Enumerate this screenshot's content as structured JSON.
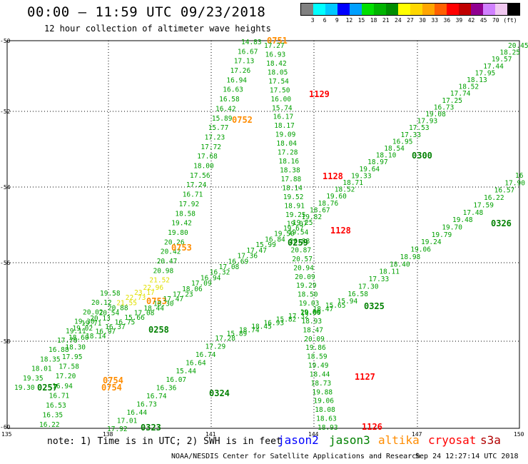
{
  "header": {
    "title": "00:00 – 11:59 UTC 09/23/2018",
    "subtitle": "12 hour collection of altimeter wave heights"
  },
  "legend": {
    "colors": [
      "#808080",
      "#00ffff",
      "#00c8ff",
      "#0000ff",
      "#00a0ff",
      "#00e000",
      "#00b400",
      "#008c00",
      "#ffff00",
      "#ffd700",
      "#ffa500",
      "#ff6000",
      "#ff0000",
      "#c00000",
      "#900090",
      "#d080ff",
      "#f0c8f0",
      "#000000"
    ],
    "labels": [
      "3",
      "6",
      "9",
      "12",
      "15",
      "18",
      "21",
      "24",
      "27",
      "30",
      "33",
      "36",
      "39",
      "42",
      "45",
      "70",
      "(ft)"
    ]
  },
  "map": {
    "lat_labels": [
      "-50",
      "-52",
      "-54",
      "-56",
      "-58",
      "-60"
    ],
    "lon_labels": [
      "135",
      "138",
      "141",
      "144",
      "147",
      "150"
    ],
    "passes": [
      {
        "id": "p0751",
        "sat": "altika",
        "time": "0751",
        "color": "#ff8c00",
        "time_pos": [
          374,
          56
        ],
        "values": [
          "14.83",
          "16.67",
          "17.13",
          "17.26",
          "16.94",
          "16.63",
          "16.58",
          "16.42",
          "15.89",
          "15.77",
          "17.23",
          "17.72",
          "17.68",
          "18.00",
          "17.56",
          "17.24",
          "16.71",
          "17.92",
          "18.58",
          "19.42",
          "19.80",
          "20.26",
          "20.42",
          "20.47",
          "20.98",
          "21.52",
          "22.96",
          "23.17",
          "22.73",
          "21.55",
          "20.88",
          "20.54",
          "20.13",
          "19.71",
          "19.02",
          "18.60",
          "18.30",
          "17.95",
          "17.58",
          "17.20",
          "16.94",
          "16.71",
          "16.53",
          "16.35",
          "16.22"
        ]
      },
      {
        "id": "p0752",
        "sat": "altika",
        "time": "0752",
        "color": "#ff8c00",
        "time_pos": [
          325,
          167
        ],
        "values": []
      },
      {
        "id": "p0753",
        "sat": "altika",
        "time": "0753",
        "color": "#ff8c00",
        "time_pos": [
          240,
          346
        ],
        "values": []
      },
      {
        "id": "p0753b",
        "sat": "altika",
        "time": "0753",
        "color": "#ff8c00",
        "time_pos": [
          205,
          421
        ],
        "values": []
      },
      {
        "id": "p0754",
        "sat": "altika",
        "time": "0754",
        "color": "#ff8c00",
        "time_pos": [
          144,
          532
        ],
        "values": []
      },
      {
        "id": "p0754b",
        "sat": "altika",
        "time": "0754",
        "color": "#ff8c00",
        "time_pos": [
          142,
          542
        ],
        "values": []
      },
      {
        "id": "p1129",
        "sat": "cryosat",
        "time": "1129",
        "color": "#ff0000",
        "time_pos": [
          433,
          131
        ],
        "values": [
          "17.27",
          "16.93",
          "18.42",
          "18.05",
          "17.54",
          "17.50",
          "16.00",
          "15.74",
          "16.17",
          "18.17",
          "19.09",
          "18.04",
          "17.28",
          "18.16",
          "18.38",
          "17.88",
          "18.14",
          "19.52",
          "18.91",
          "19.25",
          "19.07",
          "19.54",
          "20.88",
          "20.87",
          "20.57",
          "20.94",
          "20.09",
          "19.29",
          "18.50",
          "19.03",
          "19.60",
          "18.93",
          "18.47",
          "20.09",
          "19.86",
          "18.59",
          "19.49",
          "18.44",
          "18.73",
          "19.88",
          "19.06",
          "18.08",
          "18.63",
          "18.93"
        ]
      },
      {
        "id": "p1128",
        "sat": "cryosat",
        "time": "1128",
        "color": "#ff0000",
        "time_pos": [
          452,
          246
        ],
        "values": []
      },
      {
        "id": "p1128b",
        "sat": "cryosat",
        "time": "1128",
        "color": "#ff0000",
        "time_pos": [
          463,
          322
        ],
        "values": []
      },
      {
        "id": "p1127",
        "sat": "cryosat",
        "time": "1127",
        "color": "#ff0000",
        "time_pos": [
          497,
          527
        ],
        "values": []
      },
      {
        "id": "p1126",
        "sat": "cryosat",
        "time": "1126",
        "color": "#ff0000",
        "time_pos": [
          507,
          597
        ],
        "values": []
      },
      {
        "id": "p0300",
        "sat": "jason3",
        "time": "0300",
        "color": "#008000",
        "time_pos": [
          577,
          217
        ],
        "values": [
          "20.45",
          "18.25",
          "19.57",
          "17.44",
          "17.95",
          "18.13",
          "18.52",
          "17.74",
          "17.25",
          "16.73",
          "19.08",
          "17.93",
          "17.53",
          "17.33",
          "16.95",
          "18.54",
          "18.10",
          "18.97",
          "19.64",
          "19.33",
          "18.71",
          "18.52",
          "19.60",
          "18.76",
          "18.67",
          "19.82",
          "19.25",
          "19.67",
          "19.50",
          "16.84",
          "15.99",
          "17.47",
          "17.36",
          "16.69",
          "17.08",
          "16.32",
          "16.94",
          "17.09",
          "18.06",
          "17.23",
          "17.47",
          "18.30",
          "18.44",
          "17.08",
          "15.66",
          "16.75",
          "16.37",
          "16.97",
          "18.14"
        ]
      },
      {
        "id": "p0259",
        "sat": "jason3",
        "time": "0259",
        "color": "#008000",
        "time_pos": [
          403,
          339
        ],
        "values": []
      },
      {
        "id": "p0258",
        "sat": "jason3",
        "time": "0258",
        "color": "#008000",
        "time_pos": [
          208,
          461
        ],
        "values": []
      },
      {
        "id": "p0257",
        "sat": "jason3",
        "time": "0257",
        "color": "#008000",
        "time_pos": [
          52,
          542
        ],
        "values": [
          "19.30",
          "19.35",
          "18.01",
          "18.35",
          "16.88",
          "17.70",
          "19.11",
          "19.30",
          "20.02",
          "20.12",
          "19.58"
        ]
      },
      {
        "id": "p0326",
        "sat": "jason3",
        "time": "0326",
        "color": "#008000",
        "time_pos": [
          688,
          312
        ],
        "values": [
          "16",
          "17.90",
          "16.57",
          "16.22",
          "17.59",
          "17.48",
          "19.48",
          "19.70",
          "19.79",
          "19.24",
          "19.06",
          "18.98",
          "18.40",
          "18.11",
          "17.33",
          "17.30",
          "16.58",
          "15.94",
          "15.65",
          "18.47",
          "20.09",
          "17.32",
          "15.82",
          "16.93",
          "18.45",
          "18.74",
          "15.89",
          "17.28",
          "17.29",
          "16.74",
          "16.64",
          "15.44",
          "16.07",
          "16.36",
          "16.74",
          "16.73",
          "16.44",
          "17.01",
          "17.92"
        ]
      },
      {
        "id": "p0325",
        "sat": "jason3",
        "time": "0325",
        "color": "#008000",
        "time_pos": [
          510,
          428
        ],
        "values": []
      },
      {
        "id": "p0324",
        "sat": "jason3",
        "time": "0324",
        "color": "#008000",
        "time_pos": [
          293,
          550
        ],
        "values": []
      },
      {
        "id": "p0323",
        "sat": "jason3",
        "time": "0323",
        "color": "#008000",
        "time_pos": [
          197,
          598
        ],
        "values": []
      }
    ]
  },
  "footer": {
    "note": "note:  1) Time is in UTC; 2) SWH is in feet",
    "satellites": [
      {
        "name": "jason2",
        "color": "#0000ff"
      },
      {
        "name": "jason3",
        "color": "#008000"
      },
      {
        "name": "altika",
        "color": "#ff8c00"
      },
      {
        "name": "cryosat",
        "color": "#ff0000"
      },
      {
        "name": "s3a",
        "color": "#b00000"
      }
    ],
    "credit": "NOAA/NESDIS Center for Satellite Applications and Research",
    "timestamp": "Sep 24 12:27:14 UTC 2018"
  }
}
